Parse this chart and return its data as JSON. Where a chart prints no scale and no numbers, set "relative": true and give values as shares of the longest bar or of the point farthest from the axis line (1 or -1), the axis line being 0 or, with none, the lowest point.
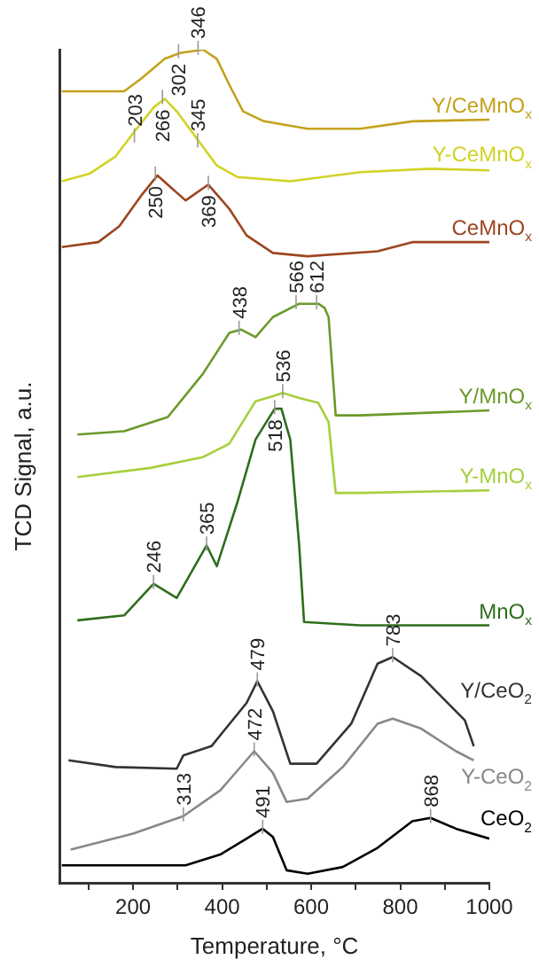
{
  "chart_data": {
    "type": "line",
    "xlabel": "Temperature, °C",
    "ylabel": "TCD Signal, a.u.",
    "relative": true,
    "xlim": [
      35,
      1000
    ],
    "xticks": [
      {
        "value": 100,
        "label": null
      },
      200,
      {
        "value": 300,
        "label": null
      },
      400,
      {
        "value": 500,
        "label": null
      },
      600,
      {
        "value": 700,
        "label": null
      },
      800,
      {
        "value": 900,
        "label": null
      },
      1000
    ],
    "grid": false,
    "legend": false,
    "marker": "none",
    "line_style": "solid",
    "series": [
      {
        "name": "Y/CeMnO$_{x}$",
        "color": "#c3a21c",
        "x": [
          40,
          180,
          220,
          271,
          306,
          357,
          388,
          416,
          447,
          494,
          592,
          710,
          827,
          1000
        ],
        "values": [
          0.95,
          0.95,
          0.966,
          0.989,
          0.996,
          1.0,
          0.989,
          0.958,
          0.926,
          0.914,
          0.905,
          0.905,
          0.914,
          0.916
        ]
      },
      {
        "name": "Y-CeMnO$_{x}$",
        "color": "#d2d226",
        "x": [
          40,
          102,
          161,
          208,
          247,
          271,
          298,
          349,
          388,
          435,
          553,
          710,
          867,
          1000
        ],
        "values": [
          0.842,
          0.851,
          0.872,
          0.905,
          0.931,
          0.941,
          0.926,
          0.889,
          0.861,
          0.847,
          0.842,
          0.853,
          0.857,
          0.855
        ]
      },
      {
        "name": "CeMnO$_{x}$",
        "color": "#9c4520",
        "x": [
          40,
          122,
          169,
          220,
          255,
          286,
          318,
          369,
          416,
          455,
          514,
          592,
          749,
          827,
          1000
        ],
        "values": [
          0.763,
          0.769,
          0.788,
          0.826,
          0.849,
          0.834,
          0.819,
          0.838,
          0.809,
          0.777,
          0.756,
          0.752,
          0.758,
          0.769,
          0.769
        ]
      },
      {
        "name": "Y/MnO$_{x}$",
        "color": "#6a9a2a",
        "x": [
          75,
          180,
          278,
          357,
          416,
          443,
          475,
          514,
          573,
          616,
          630,
          639,
          655,
          710,
          1000
        ],
        "values": [
          0.538,
          0.542,
          0.559,
          0.611,
          0.66,
          0.664,
          0.655,
          0.679,
          0.695,
          0.695,
          0.69,
          0.679,
          0.561,
          0.561,
          0.567
        ]
      },
      {
        "name": "Y-MnO$_{x}$",
        "color": "#a6cf3e",
        "x": [
          75,
          239,
          357,
          416,
          475,
          514,
          536,
          573,
          616,
          639,
          655,
          710,
          1000
        ],
        "values": [
          0.487,
          0.498,
          0.511,
          0.527,
          0.578,
          0.584,
          0.588,
          0.582,
          0.576,
          0.553,
          0.468,
          0.468,
          0.471
        ]
      },
      {
        "name": "MnO$_{x}$",
        "color": "#2f6e1c",
        "x": [
          75,
          180,
          246,
          298,
          365,
          388,
          435,
          475,
          518,
          533,
          553,
          573,
          584,
          710,
          1000
        ],
        "values": [
          0.315,
          0.321,
          0.359,
          0.342,
          0.405,
          0.38,
          0.458,
          0.532,
          0.569,
          0.569,
          0.532,
          0.405,
          0.313,
          0.309,
          0.309
        ]
      },
      {
        "name": "Y/CeO$_{2}$",
        "color": "#333333",
        "x": [
          55,
          161,
          298,
          313,
          376,
          455,
          479,
          514,
          553,
          612,
          690,
          749,
          783,
          847,
          906,
          945,
          965
        ],
        "values": [
          0.147,
          0.139,
          0.137,
          0.153,
          0.164,
          0.216,
          0.242,
          0.206,
          0.143,
          0.143,
          0.191,
          0.263,
          0.271,
          0.248,
          0.216,
          0.195,
          0.164
        ]
      },
      {
        "name": "Y-CeO$_{2}$",
        "color": "#888888",
        "x": [
          60,
          200,
          313,
          396,
          472,
          514,
          545,
          592,
          671,
          749,
          783,
          847,
          925,
          965
        ],
        "values": [
          0.04,
          0.059,
          0.08,
          0.111,
          0.158,
          0.132,
          0.097,
          0.101,
          0.139,
          0.191,
          0.197,
          0.185,
          0.158,
          0.147
        ]
      },
      {
        "name": "CeO$_{2}$",
        "color": "#000000",
        "x": [
          40,
          318,
          396,
          455,
          491,
          514,
          545,
          592,
          671,
          749,
          827,
          868,
          925,
          1000
        ],
        "values": [
          0.021,
          0.021,
          0.034,
          0.053,
          0.065,
          0.055,
          0.015,
          0.011,
          0.019,
          0.042,
          0.074,
          0.078,
          0.065,
          0.053
        ]
      }
    ],
    "annotations": [
      {
        "text": "302",
        "x": 302,
        "y": 0.996
      },
      {
        "text": "346",
        "x": 346,
        "y": 1.0
      },
      {
        "text": "203",
        "x": 203,
        "y": 0.895
      },
      {
        "text": "266",
        "x": 266,
        "y": 0.941
      },
      {
        "text": "345",
        "x": 345,
        "y": 0.889
      },
      {
        "text": "250",
        "x": 250,
        "y": 0.849
      },
      {
        "text": "369",
        "x": 369,
        "y": 0.838
      },
      {
        "text": "438",
        "x": 438,
        "y": 0.664
      },
      {
        "text": "566",
        "x": 566,
        "y": 0.695
      },
      {
        "text": "612",
        "x": 612,
        "y": 0.695
      },
      {
        "text": "536",
        "x": 536,
        "y": 0.588
      },
      {
        "text": "246",
        "x": 246,
        "y": 0.359
      },
      {
        "text": "365",
        "x": 365,
        "y": 0.405
      },
      {
        "text": "518",
        "x": 518,
        "y": 0.569
      },
      {
        "text": "479",
        "x": 479,
        "y": 0.242
      },
      {
        "text": "783",
        "x": 783,
        "y": 0.271
      },
      {
        "text": "313",
        "x": 313,
        "y": 0.08
      },
      {
        "text": "472",
        "x": 472,
        "y": 0.158
      },
      {
        "text": "491",
        "x": 491,
        "y": 0.065
      },
      {
        "text": "868",
        "x": 868,
        "y": 0.078
      }
    ]
  }
}
